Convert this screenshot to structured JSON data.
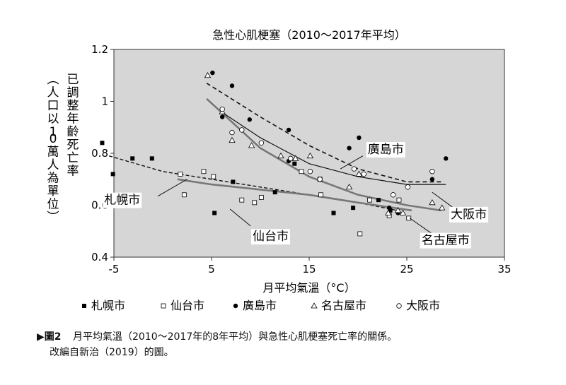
{
  "chart_data": {
    "type": "scatter",
    "title": "急性心肌梗塞（2010～2017年平均）",
    "xlabel": "月平均氣溫（°C）",
    "ylabel_lines": [
      "已調整年齡死亡率",
      "（人口以10萬人為單位）"
    ],
    "xlim": [
      -5,
      35
    ],
    "ylim": [
      0.4,
      1.2
    ],
    "x_ticks": [
      "-5",
      "5",
      "15",
      "25",
      "35"
    ],
    "y_ticks": [
      "0.4",
      "0.6",
      "0.8",
      "1",
      "1.2"
    ],
    "series": [
      {
        "name": "札幌市",
        "marker": "filled-square",
        "points": [
          [
            -6.2,
            0.84
          ],
          [
            -5.1,
            0.72
          ],
          [
            -3.1,
            0.78
          ],
          [
            -1.1,
            0.78
          ],
          [
            5.3,
            0.57
          ],
          [
            7.2,
            0.69
          ],
          [
            11.5,
            0.65
          ],
          [
            13.5,
            0.76
          ],
          [
            17.5,
            0.57
          ],
          [
            19.5,
            0.59
          ],
          [
            22.1,
            0.62
          ],
          [
            23.3,
            0.58
          ]
        ],
        "trend": [
          [
            -5.5,
            0.79
          ],
          [
            0,
            0.73
          ],
          [
            5,
            0.7
          ],
          [
            10,
            0.67
          ],
          [
            15,
            0.64
          ],
          [
            20,
            0.61
          ],
          [
            24,
            0.58
          ]
        ]
      },
      {
        "name": "仙台市",
        "marker": "open-square",
        "points": [
          [
            1.8,
            0.72
          ],
          [
            2.2,
            0.64
          ],
          [
            4.2,
            0.73
          ],
          [
            5.2,
            0.71
          ],
          [
            8.1,
            0.62
          ],
          [
            9.4,
            0.61
          ],
          [
            10.1,
            0.63
          ],
          [
            14.2,
            0.73
          ],
          [
            16.2,
            0.64
          ],
          [
            16.1,
            0.7
          ],
          [
            20.2,
            0.49
          ],
          [
            21.2,
            0.62
          ],
          [
            23.2,
            0.56
          ],
          [
            24.2,
            0.62
          ],
          [
            25.2,
            0.55
          ]
        ],
        "trend": [
          [
            1.5,
            0.7
          ],
          [
            5,
            0.68
          ],
          [
            10,
            0.66
          ],
          [
            15,
            0.64
          ],
          [
            20,
            0.61
          ],
          [
            25.5,
            0.58
          ]
        ]
      },
      {
        "name": "廣島市",
        "marker": "filled-circle",
        "points": [
          [
            5.1,
            1.11
          ],
          [
            7.1,
            1.06
          ],
          [
            6.1,
            0.94
          ],
          [
            8.9,
            0.93
          ],
          [
            12.9,
            0.89
          ],
          [
            12.9,
            0.77
          ],
          [
            19.1,
            0.82
          ],
          [
            20.1,
            0.86
          ],
          [
            23.2,
            0.59
          ],
          [
            24.1,
            0.57
          ],
          [
            27.6,
            0.7
          ],
          [
            29.0,
            0.78
          ]
        ],
        "trend": [
          [
            4.5,
            1.07
          ],
          [
            10,
            0.94
          ],
          [
            15,
            0.83
          ],
          [
            20,
            0.74
          ],
          [
            25,
            0.69
          ],
          [
            28.5,
            0.69
          ]
        ]
      },
      {
        "name": "名古屋市",
        "marker": "open-triangle",
        "points": [
          [
            4.6,
            1.1
          ],
          [
            6.1,
            0.96
          ],
          [
            7.1,
            0.85
          ],
          [
            9.1,
            0.83
          ],
          [
            12.1,
            0.79
          ],
          [
            13.6,
            0.78
          ],
          [
            15.1,
            0.79
          ],
          [
            19.1,
            0.67
          ],
          [
            20.1,
            0.72
          ],
          [
            23.1,
            0.57
          ],
          [
            24.1,
            0.58
          ],
          [
            24.6,
            0.57
          ],
          [
            27.6,
            0.61
          ],
          [
            28.6,
            0.59
          ]
        ],
        "trend": [
          [
            4.5,
            1.01
          ],
          [
            10,
            0.82
          ],
          [
            15,
            0.71
          ],
          [
            20,
            0.64
          ],
          [
            25,
            0.6
          ],
          [
            28.5,
            0.58
          ]
        ]
      },
      {
        "name": "大阪市",
        "marker": "open-circle",
        "points": [
          [
            6.1,
            0.97
          ],
          [
            7.1,
            0.88
          ],
          [
            8.1,
            0.89
          ],
          [
            10.1,
            0.84
          ],
          [
            13.1,
            0.78
          ],
          [
            15.1,
            0.73
          ],
          [
            16.1,
            0.7
          ],
          [
            19.6,
            0.74
          ],
          [
            20.6,
            0.72
          ],
          [
            23.6,
            0.64
          ],
          [
            25.1,
            0.67
          ],
          [
            27.6,
            0.73
          ]
        ],
        "trend": [
          [
            6,
            0.96
          ],
          [
            10,
            0.86
          ],
          [
            15,
            0.76
          ],
          [
            20,
            0.71
          ],
          [
            25,
            0.68
          ],
          [
            29,
            0.68
          ]
        ]
      }
    ],
    "annotations": [
      {
        "text": "札幌市",
        "x": -6.0,
        "y": 0.605,
        "line": [
          [
            -0.5,
            0.635
          ],
          [
            2.5,
            0.7
          ]
        ]
      },
      {
        "text": "仙台市",
        "x": 9.2,
        "y": 0.465,
        "line": [
          [
            9.0,
            0.52
          ],
          [
            6.9,
            0.585
          ]
        ]
      },
      {
        "text": "廣島市",
        "x": 21.0,
        "y": 0.8,
        "line": [
          [
            20.5,
            0.79
          ],
          [
            18.2,
            0.74
          ]
        ]
      },
      {
        "text": "大阪市",
        "x": 29.5,
        "y": 0.55,
        "line": [
          [
            30.5,
            0.57
          ],
          [
            27.6,
            0.65
          ]
        ]
      },
      {
        "text": "名古屋市",
        "x": 26.5,
        "y": 0.45,
        "line": [
          [
            27.6,
            0.49
          ],
          [
            25.3,
            0.55
          ]
        ]
      }
    ]
  },
  "caption": {
    "label": "▶圖2",
    "line1": "月平均氣溫（2010～2017年的8年平均）與急性心肌梗塞死亡率的關係。",
    "line2": "改編自新治（2019）的圖。"
  }
}
